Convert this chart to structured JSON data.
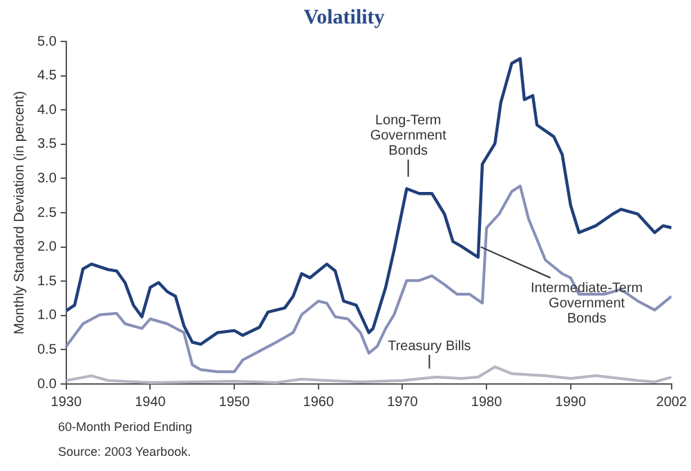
{
  "chart_data": {
    "type": "line",
    "title": "Volatility",
    "xlabel": "60-Month Period Ending",
    "ylabel": "Monthly Standard Deviation (in percent)",
    "annotations": [
      "Source: 2003 Yearbook."
    ],
    "xlim": [
      1930,
      2002
    ],
    "xticks": [
      1930,
      1940,
      1950,
      1960,
      1970,
      1980,
      1990,
      2002
    ],
    "ylim": [
      0,
      5
    ],
    "yticks": [
      {
        "value": 0,
        "label": "0.0"
      },
      {
        "value": 0.5,
        "label": "0.5"
      },
      {
        "value": 1,
        "label": "1.0"
      },
      {
        "value": 1.5,
        "label": "1.5"
      },
      {
        "value": 2,
        "label": "2.0"
      },
      {
        "value": 2.5,
        "label": "2.5"
      },
      {
        "value": 3,
        "label": "3.0"
      },
      {
        "value": 3.5,
        "label": "3.5"
      },
      {
        "value": 4,
        "label": "4.0"
      },
      {
        "value": 4.5,
        "label": "4.5"
      },
      {
        "value": 5,
        "label": "5.0"
      }
    ],
    "grid": false,
    "legend": false,
    "marker": "none",
    "line_style": "solid",
    "series": [
      {
        "name": "Long-Term Government Bonds",
        "color": "#1f3f7a",
        "x": [
          1930,
          1931,
          1932,
          1933,
          1935,
          1936,
          1937,
          1938,
          1939,
          1940,
          1941,
          1942,
          1943,
          1944,
          1945,
          1946,
          1948,
          1950,
          1951,
          1953,
          1954,
          1956,
          1957,
          1958,
          1959,
          1961,
          1962,
          1963,
          1964.5,
          1966,
          1966.5,
          1968,
          1969,
          1970.5,
          1972,
          1973.5,
          1975,
          1976,
          1977,
          1979,
          1979.5,
          1981,
          1981.7,
          1983,
          1984,
          1984.5,
          1985.5,
          1986,
          1988,
          1989,
          1990,
          1991,
          1993,
          1995,
          1996,
          1998,
          2000,
          2001,
          2002
        ],
        "values": [
          1.07,
          1.15,
          1.68,
          1.75,
          1.67,
          1.65,
          1.48,
          1.15,
          0.98,
          1.41,
          1.48,
          1.35,
          1.28,
          0.85,
          0.61,
          0.58,
          0.75,
          0.78,
          0.71,
          0.83,
          1.05,
          1.11,
          1.28,
          1.61,
          1.55,
          1.75,
          1.65,
          1.21,
          1.15,
          0.75,
          0.81,
          1.41,
          1.95,
          2.85,
          2.78,
          2.78,
          2.48,
          2.08,
          2.01,
          1.85,
          3.21,
          3.51,
          4.11,
          4.68,
          4.75,
          4.15,
          4.21,
          3.78,
          3.61,
          3.35,
          2.61,
          2.21,
          2.31,
          2.48,
          2.55,
          2.48,
          2.21,
          2.31,
          2.28
        ]
      },
      {
        "name": "Intermediate-Term Government Bonds",
        "color": "#8890b8",
        "x": [
          1930,
          1932,
          1934,
          1936,
          1937,
          1939,
          1940,
          1942,
          1944,
          1945,
          1946,
          1948,
          1950,
          1951,
          1953,
          1955,
          1957,
          1958,
          1960,
          1961,
          1962,
          1963.5,
          1965,
          1966,
          1967,
          1968,
          1969,
          1970.5,
          1972,
          1973.5,
          1975,
          1976.5,
          1978,
          1979.5,
          1980,
          1981.5,
          1983,
          1984,
          1985,
          1987,
          1989,
          1990,
          1991,
          1994,
          1996,
          1998,
          2000,
          2002
        ],
        "values": [
          0.55,
          0.88,
          1.01,
          1.03,
          0.88,
          0.81,
          0.95,
          0.88,
          0.75,
          0.28,
          0.21,
          0.18,
          0.18,
          0.35,
          0.48,
          0.61,
          0.75,
          1.01,
          1.21,
          1.18,
          0.98,
          0.95,
          0.75,
          0.45,
          0.55,
          0.81,
          1.01,
          1.51,
          1.51,
          1.58,
          1.45,
          1.31,
          1.31,
          1.18,
          2.28,
          2.48,
          2.81,
          2.89,
          2.41,
          1.81,
          1.61,
          1.55,
          1.31,
          1.31,
          1.38,
          1.21,
          1.08,
          1.28
        ]
      },
      {
        "name": "Treasury Bills",
        "color": "#b4b6c2",
        "x": [
          1930,
          1933,
          1935,
          1940,
          1950,
          1955,
          1958,
          1961,
          1965,
          1970,
          1974,
          1977,
          1979,
          1981,
          1983,
          1987,
          1990,
          1993,
          1998,
          2000,
          2002
        ],
        "values": [
          0.05,
          0.12,
          0.05,
          0.02,
          0.04,
          0.02,
          0.07,
          0.05,
          0.03,
          0.05,
          0.1,
          0.08,
          0.1,
          0.25,
          0.15,
          0.12,
          0.08,
          0.12,
          0.05,
          0.03,
          0.1
        ]
      }
    ]
  }
}
